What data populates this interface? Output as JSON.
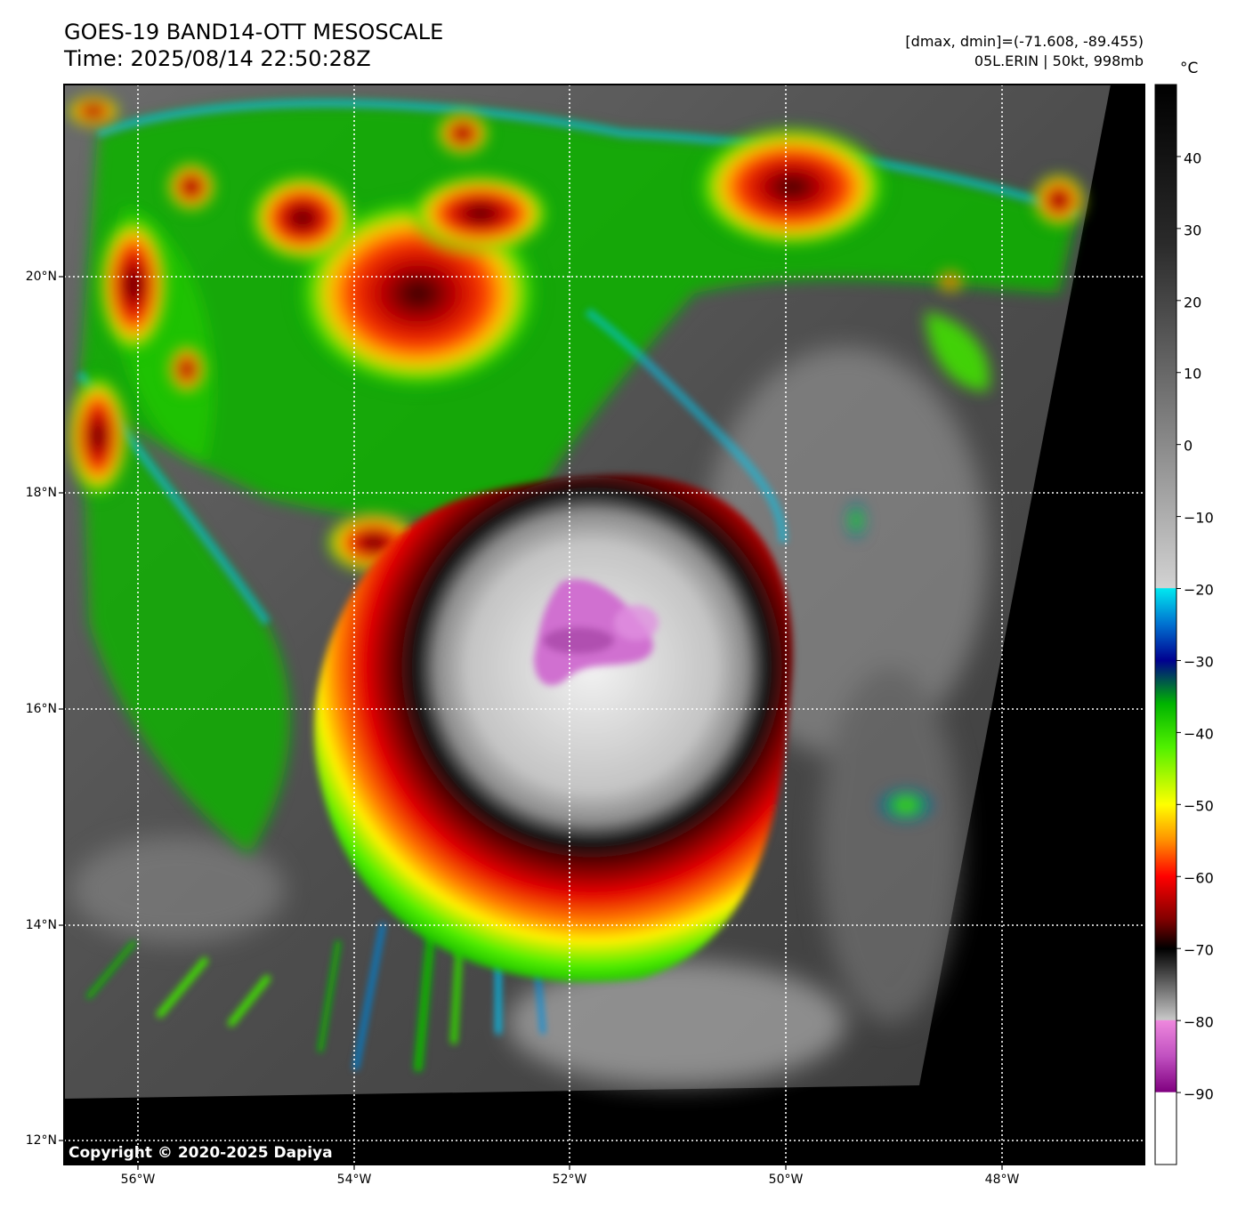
{
  "header": {
    "title_line1": "GOES-19 BAND14-OTT MESOSCALE",
    "title_line2": "Time: 2025/08/14 22:50:28Z",
    "range_text": "[dmax, dmin]=(-71.608, -89.455)",
    "storm_text": "05L.ERIN | 50kt, 998mb"
  },
  "map": {
    "lat_labels": [
      "20°N",
      "18°N",
      "16°N",
      "14°N",
      "12°N"
    ],
    "lon_labels": [
      "56°W",
      "54°W",
      "52°W",
      "50°W",
      "48°W"
    ],
    "copyright": "Copyright © 2020-2025 Dapiya"
  },
  "colorbar": {
    "unit": "°C",
    "tick_labels": [
      "40",
      "30",
      "20",
      "10",
      "0",
      "−10",
      "−20",
      "−30",
      "−40",
      "−50",
      "−60",
      "−70",
      "−80",
      "−90"
    ],
    "stops": [
      {
        "t": 50,
        "color": "#000000"
      },
      {
        "t": 28,
        "color": "#2a2a2a"
      },
      {
        "t": 0,
        "color": "#8a8a8a"
      },
      {
        "t": -19.9,
        "color": "#d2d2d2"
      },
      {
        "t": -20,
        "color": "#00e8f0"
      },
      {
        "t": -25,
        "color": "#0070d0"
      },
      {
        "t": -30,
        "color": "#000090"
      },
      {
        "t": -36,
        "color": "#00b400"
      },
      {
        "t": -42,
        "color": "#50f000"
      },
      {
        "t": -50,
        "color": "#ffff00"
      },
      {
        "t": -55,
        "color": "#ff9000"
      },
      {
        "t": -60,
        "color": "#ff0000"
      },
      {
        "t": -66,
        "color": "#800000"
      },
      {
        "t": -70,
        "color": "#000000"
      },
      {
        "t": -79.9,
        "color": "#c8c8c8"
      },
      {
        "t": -80,
        "color": "#ee88dd"
      },
      {
        "t": -85,
        "color": "#c050c0"
      },
      {
        "t": -89.9,
        "color": "#800080"
      },
      {
        "t": -90,
        "color": "#ffffff"
      },
      {
        "t": -100,
        "color": "#ffffff"
      }
    ]
  }
}
